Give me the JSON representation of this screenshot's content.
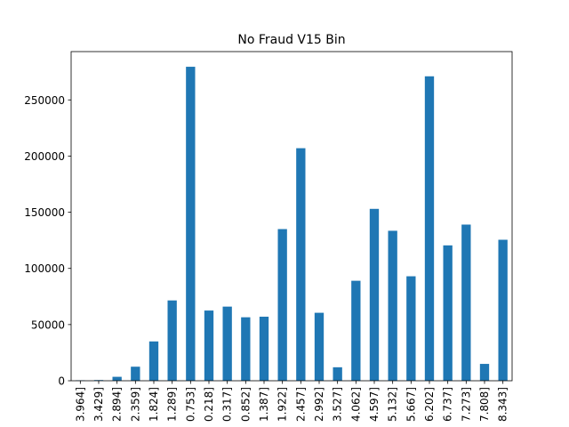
{
  "chart_data": {
    "type": "bar",
    "title": "No Fraud V15 Bin",
    "xlabel": "",
    "ylabel": "",
    "categories": [
      "3.964]",
      "3.429]",
      "2.894]",
      "2.359]",
      "1.824]",
      "1.289]",
      "0.753]",
      "0.218]",
      "0.317]",
      "0.852]",
      "1.387]",
      "1.922]",
      "2.457]",
      "2.992]",
      "3.527]",
      "4.062]",
      "4.597]",
      "5.132]",
      "5.667]",
      "6.202]",
      "6.737]",
      "7.273]",
      "7.808]",
      "8.343]"
    ],
    "values": [
      400,
      600,
      3500,
      12500,
      35000,
      71500,
      279500,
      62500,
      66000,
      56500,
      57000,
      135000,
      207000,
      60500,
      12000,
      89000,
      153000,
      133500,
      93000,
      271000,
      120500,
      139000,
      15000,
      125500
    ],
    "yticks": [
      0,
      50000,
      100000,
      150000,
      200000,
      250000
    ],
    "ylim": [
      0,
      293000
    ],
    "grid": false,
    "bar_color": "#1f77b4"
  }
}
